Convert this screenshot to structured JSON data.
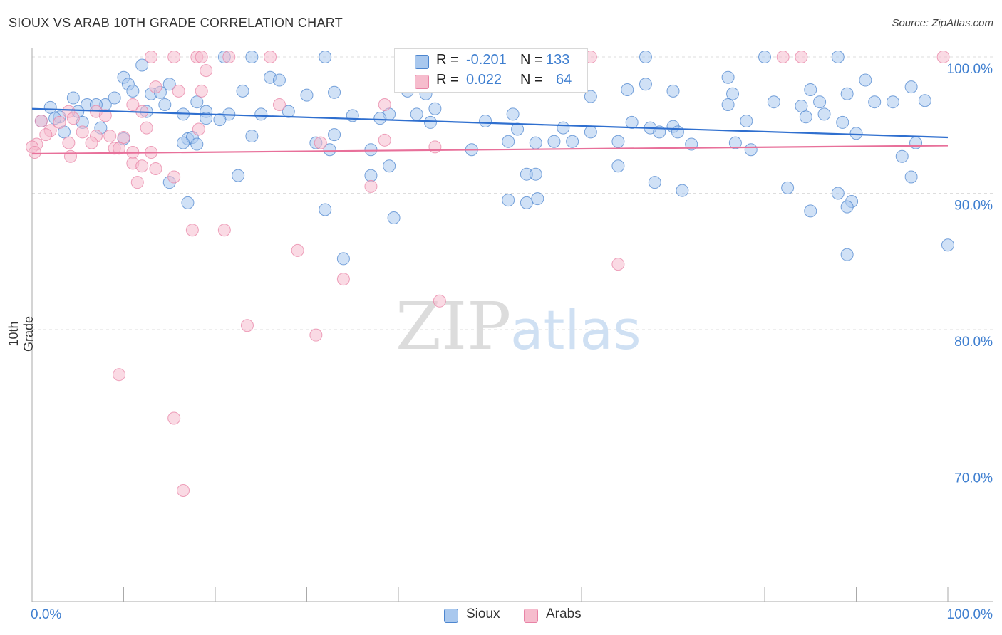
{
  "title": "SIOUX VS ARAB 10TH GRADE CORRELATION CHART",
  "source": "Source: ZipAtlas.com",
  "watermark": {
    "zip": "ZIP",
    "atlas": "atlas"
  },
  "legend_box": {
    "rows": [
      {
        "r_label": "R =",
        "r_value": "-0.201",
        "n_label": "N =",
        "n_value": "133"
      },
      {
        "r_label": "R =",
        "r_value": "0.022",
        "n_label": "N =",
        "n_value": "64"
      }
    ]
  },
  "bottom_legend": {
    "sioux": "Sioux",
    "arabs": "Arabs"
  },
  "colors": {
    "sioux_fill": "#a9c8ee",
    "sioux_stroke": "#4d86cf",
    "sioux_line": "#2f6fcf",
    "arabs_fill": "#f6bccd",
    "arabs_stroke": "#e883a6",
    "arabs_line": "#e8709a",
    "axis_text": "#3f7fd0",
    "grid": "#dddddd"
  },
  "chart_data": {
    "type": "scatter",
    "title": "SIOUX VS ARAB 10TH GRADE CORRELATION CHART",
    "xlabel": "",
    "ylabel": "10th Grade",
    "xlim": [
      0,
      100
    ],
    "ylim": [
      60,
      100
    ],
    "x_tick_labels": [
      "0.0%",
      "100.0%"
    ],
    "y_ticks": [
      {
        "value": 100,
        "label": "100.0%"
      },
      {
        "value": 90,
        "label": "90.0%"
      },
      {
        "value": 80,
        "label": "80.0%"
      },
      {
        "value": 70,
        "label": "70.0%"
      }
    ],
    "series": [
      {
        "name": "Sioux",
        "R": -0.201,
        "N": 133,
        "trend": {
          "x": [
            0,
            100
          ],
          "y": [
            96.2,
            94.1
          ]
        },
        "points": [
          [
            21,
            100
          ],
          [
            24,
            100
          ],
          [
            32,
            100
          ],
          [
            45,
            100
          ],
          [
            46,
            100
          ],
          [
            49,
            100
          ],
          [
            60,
            100
          ],
          [
            67,
            100
          ],
          [
            80,
            100
          ],
          [
            88,
            100
          ],
          [
            12,
            99.4
          ],
          [
            10,
            98.5
          ],
          [
            26,
            98.5
          ],
          [
            27,
            98.3
          ],
          [
            15,
            98
          ],
          [
            48,
            98
          ],
          [
            53,
            98.1
          ],
          [
            67,
            98
          ],
          [
            76,
            98.5
          ],
          [
            85,
            97.6
          ],
          [
            91,
            98.3
          ],
          [
            96,
            97.8
          ],
          [
            10.5,
            98
          ],
          [
            11,
            97.5
          ],
          [
            13,
            97.3
          ],
          [
            14,
            97.4
          ],
          [
            23,
            97.5
          ],
          [
            30,
            97.2
          ],
          [
            33,
            97.4
          ],
          [
            41,
            97.5
          ],
          [
            43,
            97.3
          ],
          [
            61,
            97.1
          ],
          [
            65,
            97.6
          ],
          [
            70,
            97.5
          ],
          [
            76.5,
            97.3
          ],
          [
            86,
            96.7
          ],
          [
            89,
            97.3
          ],
          [
            94,
            96.7
          ],
          [
            97.5,
            96.8
          ],
          [
            4.5,
            97
          ],
          [
            6,
            96.5
          ],
          [
            8,
            96.5
          ],
          [
            9,
            97
          ],
          [
            14.5,
            96.5
          ],
          [
            18,
            96.7
          ],
          [
            19,
            96
          ],
          [
            28,
            96
          ],
          [
            35,
            95.7
          ],
          [
            39,
            95.8
          ],
          [
            42,
            95.8
          ],
          [
            44,
            96.2
          ],
          [
            52.5,
            95.8
          ],
          [
            76,
            96.5
          ],
          [
            81,
            96.7
          ],
          [
            84,
            96.4
          ],
          [
            86.5,
            95.8
          ],
          [
            92,
            96.7
          ],
          [
            2,
            96.3
          ],
          [
            3,
            95.6
          ],
          [
            5,
            96
          ],
          [
            7,
            96.5
          ],
          [
            12.5,
            96
          ],
          [
            16.5,
            95.8
          ],
          [
            21.5,
            95.8
          ],
          [
            25,
            95.8
          ],
          [
            38,
            95.5
          ],
          [
            43.5,
            95.2
          ],
          [
            65.5,
            95.2
          ],
          [
            70,
            94.9
          ],
          [
            78,
            95.3
          ],
          [
            84.5,
            95.6
          ],
          [
            88.5,
            95.2
          ],
          [
            1,
            95.3
          ],
          [
            2.5,
            95.5
          ],
          [
            5.5,
            95.2
          ],
          [
            7.5,
            94.8
          ],
          [
            19,
            95.5
          ],
          [
            24,
            94.2
          ],
          [
            17,
            94
          ],
          [
            10,
            94
          ],
          [
            20.5,
            95.4
          ],
          [
            3.5,
            94.5
          ],
          [
            49.5,
            95.3
          ],
          [
            61,
            94.5
          ],
          [
            53,
            94.7
          ],
          [
            55,
            93.7
          ],
          [
            57,
            93.8
          ],
          [
            58,
            94.8
          ],
          [
            67.5,
            94.8
          ],
          [
            68.5,
            94.5
          ],
          [
            70.5,
            94.5
          ],
          [
            76.8,
            93.7
          ],
          [
            78.5,
            93.2
          ],
          [
            90,
            94.4
          ],
          [
            17.5,
            94.1
          ],
          [
            16.5,
            93.7
          ],
          [
            18,
            93.6
          ],
          [
            31,
            93.7
          ],
          [
            33,
            94.3
          ],
          [
            37,
            93.2
          ],
          [
            32.5,
            93.2
          ],
          [
            52,
            93.8
          ],
          [
            48,
            93.2
          ],
          [
            59,
            93.8
          ],
          [
            64,
            93.8
          ],
          [
            72,
            93.6
          ],
          [
            96.5,
            93.7
          ],
          [
            22.5,
            91.3
          ],
          [
            37,
            91.3
          ],
          [
            39,
            92
          ],
          [
            54,
            91.4
          ],
          [
            55,
            91.4
          ],
          [
            64,
            92
          ],
          [
            95,
            92.7
          ],
          [
            96,
            91.2
          ],
          [
            15,
            90.8
          ],
          [
            68,
            90.8
          ],
          [
            71,
            90.2
          ],
          [
            82.5,
            90.4
          ],
          [
            88,
            90
          ],
          [
            89.5,
            89.4
          ],
          [
            89,
            89
          ],
          [
            17,
            89.3
          ],
          [
            32,
            88.8
          ],
          [
            52,
            89.5
          ],
          [
            54,
            89.3
          ],
          [
            55.2,
            89.6
          ],
          [
            39.5,
            88.2
          ],
          [
            85,
            88.7
          ],
          [
            34,
            85.2
          ],
          [
            89,
            85.5
          ],
          [
            100,
            86.2
          ]
        ]
      },
      {
        "name": "Arabs",
        "R": 0.022,
        "N": 64,
        "trend": {
          "x": [
            0,
            100
          ],
          "y": [
            92.9,
            93.5
          ]
        },
        "points": [
          [
            13,
            100
          ],
          [
            15.5,
            100
          ],
          [
            18,
            100
          ],
          [
            18.5,
            100
          ],
          [
            21.5,
            100
          ],
          [
            26,
            100
          ],
          [
            61,
            100
          ],
          [
            82,
            100
          ],
          [
            84,
            100
          ],
          [
            99.5,
            100
          ],
          [
            19,
            99
          ],
          [
            13.5,
            97.8
          ],
          [
            16,
            97.5
          ],
          [
            18.5,
            97.5
          ],
          [
            4,
            96
          ],
          [
            4.5,
            95.5
          ],
          [
            7,
            96
          ],
          [
            8,
            95.7
          ],
          [
            11,
            96.5
          ],
          [
            12,
            96
          ],
          [
            27,
            96.5
          ],
          [
            38.5,
            96.5
          ],
          [
            1,
            95.3
          ],
          [
            3,
            95.2
          ],
          [
            2,
            94.6
          ],
          [
            12.5,
            94.8
          ],
          [
            18.2,
            94.7
          ],
          [
            1.5,
            94.3
          ],
          [
            5.5,
            94.5
          ],
          [
            7,
            94.2
          ],
          [
            8.5,
            94.2
          ],
          [
            10,
            94.1
          ],
          [
            4,
            93.7
          ],
          [
            6.5,
            93.7
          ],
          [
            9,
            93.3
          ],
          [
            9.5,
            93.3
          ],
          [
            11,
            93
          ],
          [
            13,
            93
          ],
          [
            0.5,
            93.6
          ],
          [
            0,
            93.4
          ],
          [
            0.3,
            93
          ],
          [
            4.2,
            92.7
          ],
          [
            31.5,
            93.7
          ],
          [
            38.5,
            93.9
          ],
          [
            44,
            93.4
          ],
          [
            11,
            92.2
          ],
          [
            12,
            92
          ],
          [
            13.5,
            91.8
          ],
          [
            15.5,
            91.2
          ],
          [
            11.5,
            90.8
          ],
          [
            37,
            90.5
          ],
          [
            17.5,
            87.3
          ],
          [
            21,
            87.3
          ],
          [
            29,
            85.8
          ],
          [
            64,
            84.8
          ],
          [
            34,
            83.7
          ],
          [
            44.5,
            82.1
          ],
          [
            23.5,
            80.3
          ],
          [
            31,
            79.6
          ],
          [
            9.5,
            76.7
          ],
          [
            15.5,
            73.5
          ],
          [
            16.5,
            68.2
          ]
        ]
      }
    ]
  }
}
